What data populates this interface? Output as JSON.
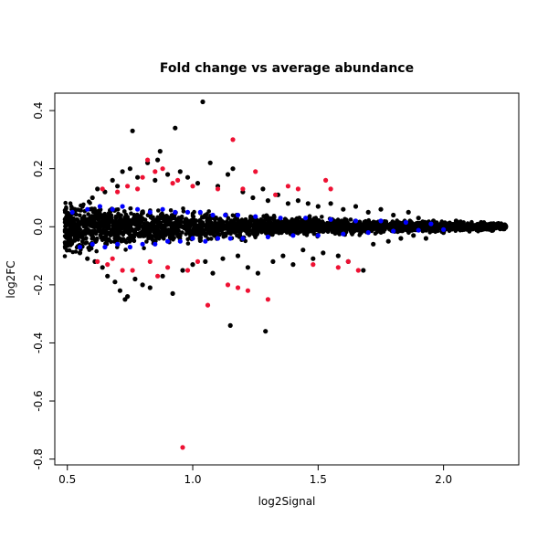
{
  "chart_data": {
    "type": "scatter",
    "title": "Fold change vs average abundance",
    "xlabel": "log2Signal",
    "ylabel": "log2FC",
    "xlim": [
      0.45,
      2.3
    ],
    "ylim": [
      -0.82,
      0.46
    ],
    "xticks": [
      0.5,
      1.0,
      1.5,
      2.0
    ],
    "xtick_labels": [
      "0.5",
      "1.0",
      "1.5",
      "2.0"
    ],
    "yticks": [
      -0.8,
      -0.6,
      -0.4,
      -0.2,
      0.0,
      0.2,
      0.4
    ],
    "ytick_labels": [
      "-0.8",
      "-0.6",
      "-0.4",
      "-0.2",
      "0.0",
      "0.2",
      "0.4"
    ],
    "grid": false,
    "legend": "none",
    "colors": {
      "not_significant": "#000000",
      "significant": "#0000ff",
      "highlighted": "#ee1133"
    },
    "series": [
      {
        "color_key": "not_significant",
        "points": [
          [
            0.5,
            0.04
          ],
          [
            0.52,
            -0.05
          ],
          [
            0.53,
            0.06
          ],
          [
            0.55,
            -0.09
          ],
          [
            0.56,
            0.07
          ],
          [
            0.58,
            -0.11
          ],
          [
            0.6,
            0.1
          ],
          [
            0.61,
            -0.12
          ],
          [
            0.62,
            0.13
          ],
          [
            0.64,
            -0.14
          ],
          [
            0.65,
            0.12
          ],
          [
            0.66,
            -0.17
          ],
          [
            0.68,
            0.16
          ],
          [
            0.69,
            -0.19
          ],
          [
            0.7,
            0.14
          ],
          [
            0.71,
            -0.22
          ],
          [
            0.72,
            0.19
          ],
          [
            0.73,
            -0.25
          ],
          [
            0.74,
            -0.24
          ],
          [
            0.75,
            0.2
          ],
          [
            0.76,
            0.33
          ],
          [
            0.77,
            -0.18
          ],
          [
            0.78,
            0.17
          ],
          [
            0.8,
            -0.2
          ],
          [
            0.82,
            0.22
          ],
          [
            0.83,
            -0.21
          ],
          [
            0.85,
            0.16
          ],
          [
            0.86,
            0.23
          ],
          [
            0.87,
            0.26
          ],
          [
            0.88,
            -0.17
          ],
          [
            0.9,
            0.18
          ],
          [
            0.92,
            -0.23
          ],
          [
            0.93,
            0.34
          ],
          [
            0.95,
            0.19
          ],
          [
            0.96,
            -0.15
          ],
          [
            0.98,
            0.17
          ],
          [
            1.0,
            -0.13
          ],
          [
            1.02,
            0.15
          ],
          [
            1.04,
            0.43
          ],
          [
            1.05,
            -0.12
          ],
          [
            1.07,
            0.22
          ],
          [
            1.08,
            -0.16
          ],
          [
            1.1,
            0.14
          ],
          [
            1.12,
            -0.11
          ],
          [
            1.14,
            0.18
          ],
          [
            1.15,
            -0.34
          ],
          [
            1.16,
            0.2
          ],
          [
            1.18,
            -0.1
          ],
          [
            1.2,
            0.12
          ],
          [
            1.22,
            -0.14
          ],
          [
            1.24,
            0.1
          ],
          [
            1.26,
            -0.16
          ],
          [
            1.28,
            0.13
          ],
          [
            1.29,
            -0.36
          ],
          [
            1.3,
            0.09
          ],
          [
            1.32,
            -0.12
          ],
          [
            1.34,
            0.11
          ],
          [
            1.36,
            -0.1
          ],
          [
            1.38,
            0.08
          ],
          [
            1.4,
            -0.13
          ],
          [
            1.42,
            0.09
          ],
          [
            1.44,
            -0.08
          ],
          [
            1.46,
            0.08
          ],
          [
            1.48,
            -0.11
          ],
          [
            1.5,
            0.07
          ],
          [
            1.52,
            -0.09
          ],
          [
            1.55,
            0.08
          ],
          [
            1.58,
            -0.1
          ],
          [
            1.6,
            0.06
          ],
          [
            1.62,
            -0.12
          ],
          [
            1.65,
            0.07
          ],
          [
            1.68,
            -0.15
          ],
          [
            1.7,
            0.05
          ],
          [
            1.72,
            -0.06
          ],
          [
            1.75,
            0.06
          ],
          [
            1.78,
            -0.05
          ],
          [
            1.8,
            0.04
          ],
          [
            1.83,
            -0.04
          ],
          [
            1.86,
            0.05
          ],
          [
            1.88,
            -0.03
          ],
          [
            1.9,
            0.03
          ],
          [
            1.93,
            -0.04
          ],
          [
            1.96,
            0.02
          ],
          [
            2.0,
            -0.02
          ],
          [
            2.05,
            0.02
          ],
          [
            2.1,
            -0.01
          ],
          [
            2.15,
            0.015
          ],
          [
            2.2,
            0.0
          ],
          [
            2.24,
            -0.005
          ]
        ]
      },
      {
        "color_key": "significant",
        "points": [
          [
            0.52,
            0.05
          ],
          [
            0.55,
            -0.07
          ],
          [
            0.58,
            0.06
          ],
          [
            0.6,
            -0.06
          ],
          [
            0.63,
            0.07
          ],
          [
            0.65,
            -0.07
          ],
          [
            0.68,
            0.06
          ],
          [
            0.7,
            -0.06
          ],
          [
            0.72,
            0.07
          ],
          [
            0.75,
            -0.07
          ],
          [
            0.78,
            0.06
          ],
          [
            0.8,
            -0.06
          ],
          [
            0.83,
            0.05
          ],
          [
            0.85,
            -0.06
          ],
          [
            0.88,
            0.06
          ],
          [
            0.9,
            -0.05
          ],
          [
            0.93,
            0.05
          ],
          [
            0.95,
            -0.05
          ],
          [
            0.98,
            0.05
          ],
          [
            1.0,
            -0.04
          ],
          [
            1.03,
            0.05
          ],
          [
            1.05,
            -0.05
          ],
          [
            1.08,
            0.04
          ],
          [
            1.1,
            -0.04
          ],
          [
            1.13,
            0.04
          ],
          [
            1.15,
            -0.04
          ],
          [
            1.18,
            0.04
          ],
          [
            1.2,
            -0.04
          ],
          [
            1.25,
            0.035
          ],
          [
            1.3,
            -0.035
          ],
          [
            1.35,
            0.03
          ],
          [
            1.4,
            -0.03
          ],
          [
            1.45,
            0.03
          ],
          [
            1.5,
            -0.03
          ],
          [
            1.55,
            0.025
          ],
          [
            1.6,
            -0.025
          ],
          [
            1.65,
            0.02
          ],
          [
            1.7,
            -0.02
          ],
          [
            1.75,
            0.02
          ],
          [
            1.8,
            -0.015
          ],
          [
            1.85,
            0.015
          ],
          [
            1.9,
            -0.012
          ],
          [
            1.95,
            0.01
          ],
          [
            2.0,
            -0.01
          ]
        ]
      },
      {
        "color_key": "highlighted",
        "points": [
          [
            0.62,
            -0.12
          ],
          [
            0.64,
            0.13
          ],
          [
            0.66,
            -0.13
          ],
          [
            0.68,
            -0.11
          ],
          [
            0.7,
            0.12
          ],
          [
            0.72,
            -0.15
          ],
          [
            0.74,
            0.14
          ],
          [
            0.76,
            -0.15
          ],
          [
            0.78,
            0.13
          ],
          [
            0.8,
            0.17
          ],
          [
            0.82,
            0.23
          ],
          [
            0.83,
            -0.12
          ],
          [
            0.85,
            0.19
          ],
          [
            0.86,
            -0.17
          ],
          [
            0.88,
            0.2
          ],
          [
            0.9,
            -0.14
          ],
          [
            0.92,
            0.15
          ],
          [
            0.94,
            0.16
          ],
          [
            0.96,
            -0.76
          ],
          [
            0.98,
            -0.15
          ],
          [
            1.0,
            0.14
          ],
          [
            1.02,
            -0.12
          ],
          [
            1.06,
            -0.27
          ],
          [
            1.1,
            0.13
          ],
          [
            1.14,
            -0.2
          ],
          [
            1.16,
            0.3
          ],
          [
            1.18,
            -0.21
          ],
          [
            1.2,
            0.13
          ],
          [
            1.22,
            -0.22
          ],
          [
            1.25,
            0.19
          ],
          [
            1.3,
            -0.25
          ],
          [
            1.33,
            0.11
          ],
          [
            1.38,
            0.14
          ],
          [
            1.42,
            0.13
          ],
          [
            1.48,
            -0.13
          ],
          [
            1.53,
            0.16
          ],
          [
            1.55,
            0.13
          ],
          [
            1.58,
            -0.14
          ],
          [
            1.62,
            -0.12
          ],
          [
            1.66,
            -0.15
          ]
        ]
      }
    ]
  }
}
